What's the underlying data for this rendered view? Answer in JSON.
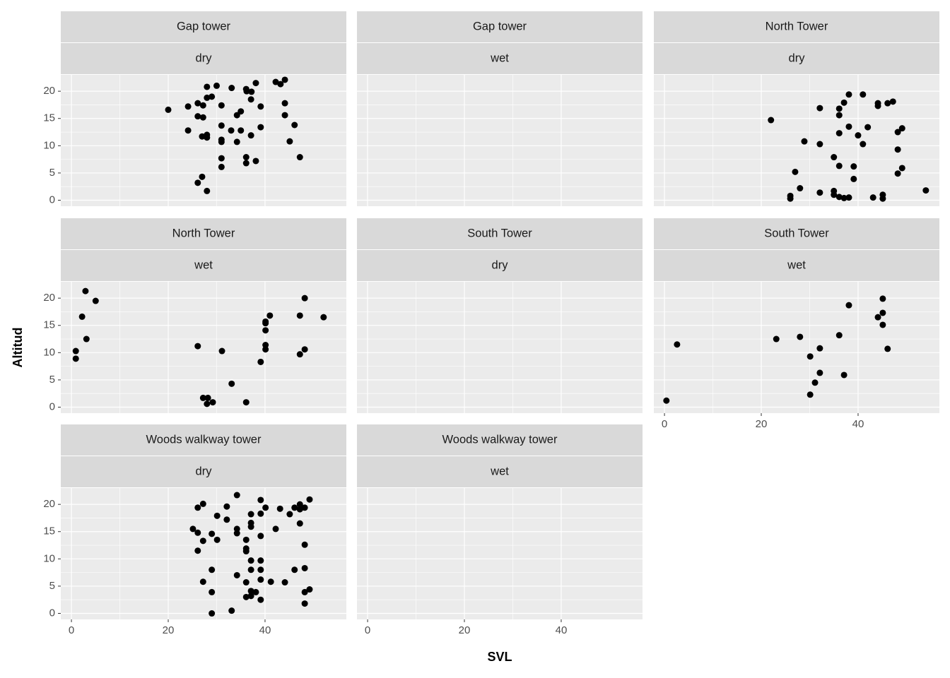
{
  "chart_data": {
    "type": "scatter",
    "xlabel": "SVL",
    "ylabel": "Altitud",
    "color": "#000000",
    "grid": true,
    "xlim": [
      -2.2,
      56.8
    ],
    "xticks": [
      0,
      20,
      40
    ],
    "ylim": [
      -1.1,
      23
    ],
    "yticks": [
      0,
      5,
      10,
      15,
      20
    ],
    "facets": [
      {
        "strip": [
          "Gap tower",
          "dry"
        ],
        "x": [
          20,
          24.1,
          24.1,
          26.1,
          26.1,
          27.2,
          27.2,
          27,
          28,
          28,
          28,
          28,
          29,
          30,
          31,
          31,
          31,
          31,
          31,
          31,
          33,
          33.1,
          34.2,
          34.2,
          35,
          35,
          36.1,
          36.2,
          36.1,
          36.1,
          37.1,
          37.1,
          37.2,
          38.1,
          38.1,
          39.1,
          39.1,
          42.2,
          43.2,
          44.1,
          44.1,
          44.1,
          45.1,
          46.1,
          47.2,
          27,
          26.1,
          28
        ],
        "y": [
          16.6,
          17.2,
          12.8,
          17.8,
          15.4,
          17.4,
          15.2,
          11.7,
          12,
          11.5,
          20.8,
          18.8,
          19,
          21,
          17.4,
          13.7,
          11.1,
          10.7,
          7.7,
          6.1,
          12.8,
          20.6,
          15.6,
          10.7,
          16.3,
          12.8,
          20.4,
          20,
          7.9,
          6.8,
          18.5,
          11.9,
          19.9,
          21.5,
          7.2,
          17.2,
          13.4,
          21.7,
          21.3,
          22.1,
          17.8,
          15.6,
          10.8,
          13.8,
          7.9,
          4.3,
          3.2,
          1.7
        ]
      },
      {
        "strip": [
          "Gap tower",
          "wet"
        ],
        "x": [],
        "y": []
      },
      {
        "strip": [
          "North Tower",
          "dry"
        ],
        "x": [
          22,
          32.1,
          36.1,
          36.1,
          37.1,
          38.1,
          41,
          44.1,
          44.1,
          46.1,
          47.2,
          38.1,
          42,
          49.1,
          48.2,
          36.1,
          40,
          28.9,
          32.1,
          41,
          48.2,
          35,
          36.1,
          39.1,
          49.1,
          27,
          48.2,
          39.1,
          28,
          54,
          32.1,
          35,
          35,
          26,
          26,
          36.1,
          37.1,
          38.1,
          43.1,
          45.1,
          45.1
        ],
        "y": [
          14.7,
          16.9,
          16.8,
          15.6,
          17.9,
          19.4,
          19.4,
          17.8,
          17.3,
          17.8,
          18.1,
          13.5,
          13.4,
          13.2,
          12.5,
          12.3,
          11.9,
          10.8,
          10.3,
          10.3,
          9.3,
          7.9,
          6.3,
          6.2,
          5.9,
          5.2,
          4.9,
          3.9,
          2.2,
          1.8,
          1.4,
          1.7,
          1.0,
          0.8,
          0.3,
          0.6,
          0.4,
          0.5,
          0.5,
          1.0,
          0.3
        ]
      },
      {
        "strip": [
          "North Tower",
          "wet"
        ],
        "x": [
          2.9,
          2.2,
          5,
          3.1,
          0.9,
          0.9,
          26.1,
          31.1,
          27.2,
          28.2,
          28,
          29.2,
          33.1,
          36.1,
          39.1,
          40.1,
          40.1,
          40.1,
          40.1,
          40.1,
          41,
          47.2,
          48.2,
          47.2,
          48.2,
          52.1
        ],
        "y": [
          21.3,
          16.6,
          19.5,
          12.5,
          10.3,
          8.9,
          11.2,
          10.3,
          1.7,
          1.7,
          0.6,
          0.9,
          4.3,
          0.9,
          8.3,
          10.6,
          11.4,
          14.1,
          15.4,
          15.7,
          16.8,
          16.8,
          20,
          9.7,
          10.6,
          16.5
        ]
      },
      {
        "strip": [
          "South Tower",
          "dry"
        ],
        "x": [],
        "y": []
      },
      {
        "strip": [
          "South Tower",
          "wet"
        ],
        "x": [
          0.4,
          2.6,
          23.1,
          28,
          30.1,
          32.1,
          36.1,
          38.1,
          44.1,
          45.1,
          45.1,
          45.1,
          46.1,
          37.1,
          32.1,
          31.1,
          30.1
        ],
        "y": [
          1.2,
          11.5,
          12.5,
          12.9,
          9.3,
          10.8,
          13.2,
          18.7,
          16.5,
          19.9,
          17.3,
          15.1,
          10.7,
          5.9,
          6.3,
          4.5,
          2.3
        ]
      },
      {
        "strip": [
          "Woods walkway tower",
          "dry"
        ],
        "x": [
          25.1,
          26.1,
          26.1,
          26.1,
          27.2,
          27.2,
          27.2,
          29,
          30.1,
          29,
          29,
          29,
          30.1,
          32.1,
          32.1,
          33.1,
          34.2,
          34.2,
          34.2,
          34.2,
          36.1,
          36.1,
          36.1,
          36.1,
          36.1,
          37.1,
          37.1,
          37.1,
          37.1,
          37.1,
          37.1,
          37.1,
          38.1,
          39.1,
          39.1,
          39.1,
          39.1,
          39.1,
          39.1,
          39.1,
          40.1,
          41.2,
          42.2,
          43.1,
          44.1,
          45.1,
          46.1,
          46.1,
          47.2,
          47.2,
          47.2,
          48.2,
          48.2,
          48.2,
          48.2,
          48.2,
          49.2,
          49.2
        ],
        "y": [
          15.5,
          14.8,
          11.5,
          19.4,
          20.1,
          13.3,
          5.8,
          14.6,
          13.5,
          8,
          3.9,
          0,
          17.9,
          19.6,
          17.2,
          0.5,
          21.7,
          15.5,
          14.7,
          7,
          13.5,
          11.9,
          11.4,
          5.7,
          3,
          18.2,
          16.6,
          15.9,
          9.7,
          8,
          4.1,
          3.2,
          3.9,
          20.8,
          18.3,
          14.2,
          9.7,
          8,
          6.2,
          2.5,
          19.4,
          5.8,
          15.5,
          19.2,
          5.7,
          18.2,
          19.4,
          8,
          19.1,
          16.5,
          20,
          19.4,
          12.6,
          8.3,
          3.9,
          1.8,
          20.9,
          4.4
        ]
      },
      {
        "strip": [
          "Woods walkway tower",
          "wet"
        ],
        "x": [],
        "y": []
      }
    ]
  }
}
